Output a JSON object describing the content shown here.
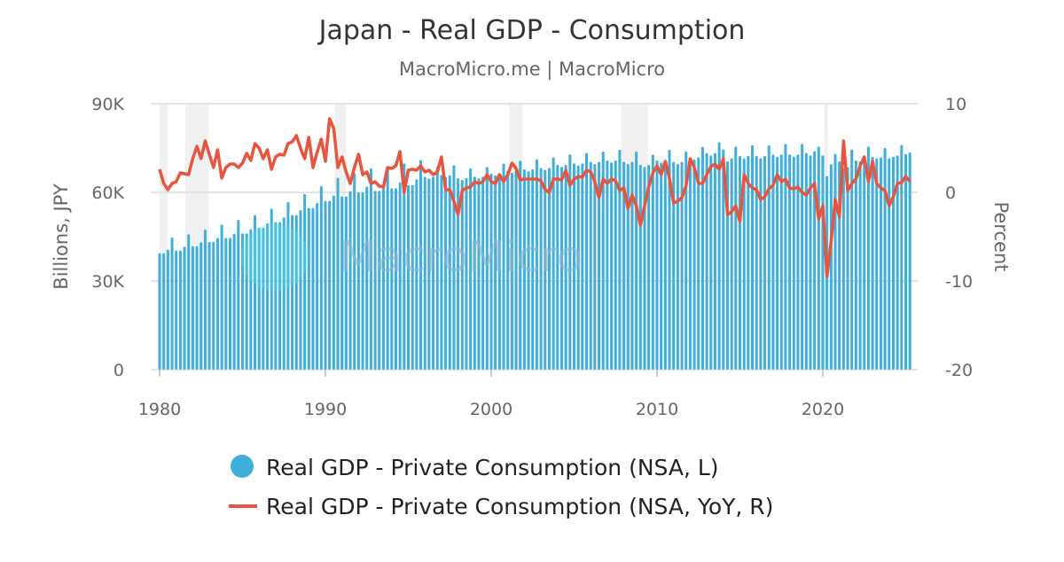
{
  "chart_data": {
    "type": "bar+line",
    "title": "Japan - Real GDP - Consumption",
    "subtitle": "MacroMicro.me | MacroMicro",
    "watermark": "MacroMicro",
    "ylabel_left": "Billions, JPY",
    "ylabel_right": "Percent",
    "ylim_left": [
      0,
      90000
    ],
    "ylim_right": [
      -20,
      10
    ],
    "yticks_left": [
      {
        "v": 0,
        "label": "0"
      },
      {
        "v": 30000,
        "label": "30K"
      },
      {
        "v": 60000,
        "label": "60K"
      },
      {
        "v": 90000,
        "label": "90K"
      }
    ],
    "yticks_right": [
      {
        "v": -20,
        "label": "-20"
      },
      {
        "v": -10,
        "label": "-10"
      },
      {
        "v": 0,
        "label": "0"
      },
      {
        "v": 10,
        "label": "10"
      }
    ],
    "xticks": [
      1980,
      1990,
      2000,
      2010,
      2020
    ],
    "x_start": "1980Q1",
    "frequency": "quarterly",
    "grid": true,
    "legend_placement": "bottom",
    "colors": {
      "bars": "#3eaedb",
      "line": "#e8553e",
      "recession": "#f0f0f0"
    },
    "recessions": [
      [
        1980.0,
        1980.5
      ],
      [
        1981.55,
        1982.95
      ],
      [
        1990.55,
        1991.25
      ],
      [
        2001.1,
        2001.9
      ],
      [
        2007.85,
        2009.45
      ],
      [
        2020.1,
        2020.3
      ]
    ],
    "series": [
      {
        "name": "Real GDP - Private Consumption (NSA, L)",
        "axis": "left",
        "kind": "bar",
        "values": [
          39400,
          39400,
          40600,
          44700,
          40300,
          40300,
          41600,
          45800,
          41800,
          41800,
          43100,
          47400,
          43200,
          43200,
          44600,
          49100,
          44600,
          44600,
          46000,
          50700,
          46100,
          46100,
          47500,
          52300,
          48000,
          48000,
          49500,
          54500,
          49900,
          49900,
          51500,
          56700,
          52300,
          52300,
          54000,
          59400,
          54700,
          54700,
          56400,
          62100,
          57100,
          57100,
          58900,
          64900,
          58600,
          58600,
          60400,
          66500,
          60000,
          60000,
          61900,
          68100,
          60500,
          60500,
          62400,
          68700,
          61400,
          61400,
          63400,
          69800,
          62400,
          62400,
          64400,
          70900,
          65300,
          64700,
          65300,
          68600,
          65800,
          65200,
          65800,
          69200,
          64800,
          64200,
          64800,
          68100,
          65300,
          64700,
          65300,
          68600,
          66300,
          65700,
          66300,
          69700,
          67300,
          66600,
          67300,
          70700,
          67800,
          67100,
          67800,
          71200,
          68300,
          67600,
          68300,
          71800,
          69300,
          68600,
          69300,
          72800,
          69800,
          69100,
          69800,
          73300,
          70300,
          69600,
          70300,
          73800,
          70800,
          70100,
          70800,
          74400,
          70300,
          69600,
          70300,
          73800,
          69300,
          68600,
          69300,
          72800,
          70800,
          70100,
          70800,
          74400,
          70300,
          69600,
          70300,
          73800,
          71800,
          71100,
          71800,
          75400,
          73300,
          72500,
          73300,
          77000,
          74500,
          70500,
          71500,
          75500,
          72300,
          71500,
          72300,
          75900,
          72300,
          71500,
          72300,
          75900,
          72800,
          72000,
          72800,
          76400,
          72800,
          72000,
          72800,
          76400,
          73300,
          72500,
          73900,
          75500,
          72500,
          65500,
          69500,
          73000,
          70500,
          68000,
          68500,
          74500,
          70800,
          70500,
          71500,
          75500,
          72000,
          71500,
          71800,
          75000,
          71500,
          72000,
          72500,
          76000,
          73000,
          73500
        ]
      },
      {
        "name": "Real GDP - Private Consumption (NSA, YoY, R)",
        "axis": "right",
        "kind": "line",
        "values": [
          2.6,
          1.0,
          0.3,
          1.0,
          1.2,
          2.2,
          2.1,
          2.0,
          3.8,
          5.2,
          3.8,
          5.8,
          4.3,
          2.8,
          4.8,
          1.6,
          2.8,
          3.2,
          3.2,
          2.8,
          3.3,
          4.4,
          3.6,
          5.5,
          5.0,
          3.8,
          4.8,
          2.6,
          4.0,
          4.3,
          4.2,
          5.5,
          5.7,
          6.4,
          5.0,
          3.8,
          6.2,
          2.8,
          4.5,
          6.0,
          3.5,
          8.3,
          7.2,
          2.8,
          4.0,
          2.3,
          1.0,
          2.8,
          4.3,
          2.0,
          2.3,
          1.0,
          1.2,
          0.7,
          0.6,
          2.8,
          2.7,
          3.0,
          4.6,
          0.0,
          2.5,
          2.6,
          2.5,
          3.0,
          2.3,
          2.5,
          2.0,
          2.3,
          4.0,
          0.3,
          0.3,
          -1.0,
          -2.5,
          0.2,
          0.5,
          0.6,
          1.2,
          1.0,
          1.2,
          2.0,
          1.2,
          1.0,
          2.0,
          1.2,
          2.0,
          3.3,
          2.7,
          1.4,
          1.5,
          1.5,
          1.5,
          1.5,
          1.3,
          0.3,
          0.0,
          1.5,
          1.5,
          1.4,
          2.5,
          0.8,
          1.5,
          1.8,
          1.7,
          2.5,
          2.3,
          1.2,
          -0.6,
          1.5,
          1.0,
          1.5,
          1.3,
          0.2,
          0.5,
          -1.8,
          -0.3,
          -1.5,
          -3.7,
          -1.5,
          0.6,
          2.2,
          3.0,
          2.0,
          3.5,
          1.6,
          -1.2,
          -1.0,
          -0.6,
          0.7,
          3.8,
          2.8,
          1.0,
          1.0,
          2.0,
          2.9,
          3.2,
          2.6,
          3.8,
          -2.5,
          -2.2,
          -1.5,
          -3.3,
          2.0,
          1.0,
          0.5,
          0.3,
          -0.8,
          -0.5,
          0.4,
          0.8,
          2.0,
          1.2,
          1.5,
          0.5,
          0.4,
          0.6,
          0.0,
          -0.3,
          0.5,
          1.0,
          -3.0,
          -1.5,
          -9.5,
          -5.5,
          -0.8,
          -2.8,
          5.8,
          0.2,
          1.0,
          1.5,
          3.0,
          4.0,
          1.2,
          3.5,
          1.0,
          0.5,
          0.2,
          -1.5,
          -0.5,
          1.0,
          1.1,
          1.8,
          1.2
        ]
      }
    ]
  }
}
